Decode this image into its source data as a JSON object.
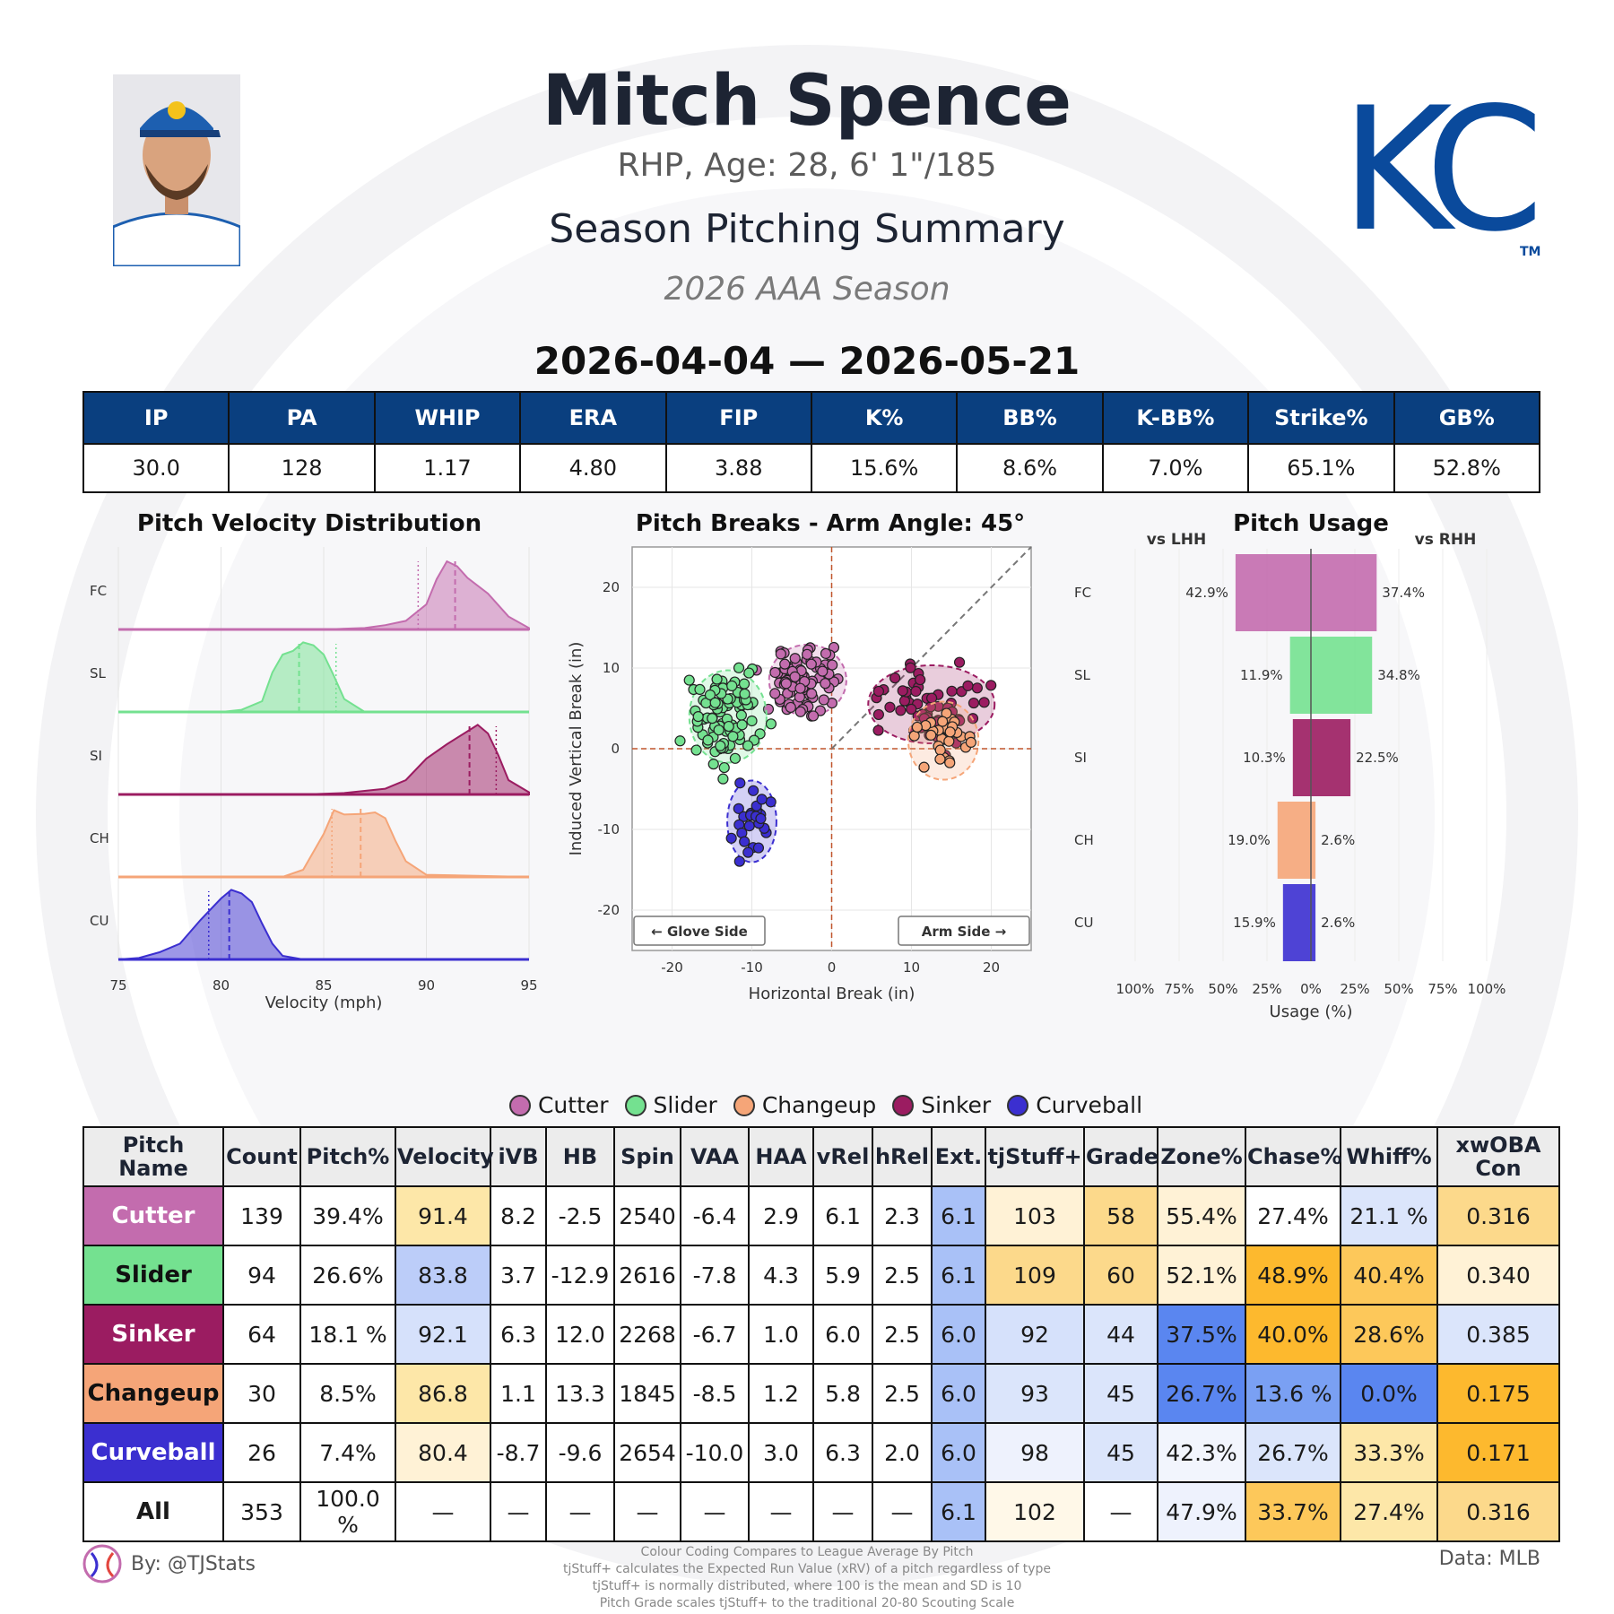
{
  "header": {
    "name": "Mitch Spence",
    "bio": "RHP, Age: 28, 6' 1\"/185",
    "summary_title": "Season Pitching Summary",
    "season": "2026 AAA Season",
    "date_range": "2026-04-04 — 2026-05-21",
    "logo_text": "KC",
    "logo_tm": "TM"
  },
  "colors": {
    "Cutter": "#c36cae",
    "Slider": "#74e190",
    "Sinker": "#9b1c61",
    "Changeup": "#f5a578",
    "Curveball": "#3b2fd0",
    "header_blue": "#0a3f7f"
  },
  "stats": {
    "headers": [
      "IP",
      "PA",
      "WHIP",
      "ERA",
      "FIP",
      "K%",
      "BB%",
      "K-BB%",
      "Strike%",
      "GB%"
    ],
    "values": [
      "30.0",
      "128",
      "1.17",
      "4.80",
      "3.88",
      "15.6%",
      "8.6%",
      "7.0%",
      "65.1%",
      "52.8%"
    ]
  },
  "chart_data": [
    {
      "type": "area",
      "title": "Pitch Velocity Distribution",
      "xlabel": "Velocity (mph)",
      "xlim": [
        75,
        95
      ],
      "xticks": [
        75,
        80,
        85,
        90,
        95
      ],
      "series": [
        {
          "name": "FC",
          "pitch": "Cutter",
          "x": [
            75,
            85,
            87,
            88,
            89,
            90,
            90.5,
            91,
            91.5,
            92,
            93,
            94,
            95
          ],
          "y": [
            0,
            0,
            0.02,
            0.06,
            0.12,
            0.35,
            0.7,
            0.95,
            0.88,
            0.72,
            0.5,
            0.18,
            0.02
          ],
          "mean": 91.4,
          "median": 89.6
        },
        {
          "name": "SL",
          "pitch": "Slider",
          "x": [
            75,
            80,
            81,
            82,
            82.5,
            83,
            83.5,
            84,
            84.5,
            85,
            85.5,
            86,
            87,
            95
          ],
          "y": [
            0,
            0,
            0.03,
            0.15,
            0.55,
            0.8,
            0.85,
            0.97,
            0.93,
            0.8,
            0.5,
            0.18,
            0,
            0
          ],
          "mean": 83.8,
          "median": 85.6
        },
        {
          "name": "SI",
          "pitch": "Sinker",
          "x": [
            75,
            84,
            86,
            88,
            89,
            90,
            91,
            92,
            92.5,
            93,
            93.5,
            94,
            95
          ],
          "y": [
            0,
            0,
            0.02,
            0.08,
            0.2,
            0.5,
            0.7,
            0.88,
            0.97,
            0.85,
            0.55,
            0.2,
            0.03
          ],
          "mean": 92.1,
          "median": 93.4
        },
        {
          "name": "CH",
          "pitch": "Changeup",
          "x": [
            75,
            83,
            84,
            85,
            85.5,
            86,
            87,
            87.5,
            88,
            88.5,
            89,
            90,
            95
          ],
          "y": [
            0,
            0,
            0.1,
            0.6,
            0.93,
            0.87,
            0.88,
            0.9,
            0.82,
            0.5,
            0.22,
            0.03,
            0
          ],
          "mean": 86.8,
          "median": 85.4
        },
        {
          "name": "CU",
          "pitch": "Curveball",
          "x": [
            75,
            76,
            77,
            78,
            79,
            80,
            80.5,
            81,
            81.5,
            82,
            82.5,
            83,
            84,
            95
          ],
          "y": [
            0,
            0.02,
            0.1,
            0.22,
            0.55,
            0.85,
            0.97,
            0.92,
            0.8,
            0.5,
            0.22,
            0.05,
            0,
            0
          ],
          "mean": 80.4,
          "median": 79.4
        }
      ]
    },
    {
      "type": "scatter",
      "title": "Pitch Breaks - Arm Angle: 45°",
      "xlabel": "Horizontal Break (in)",
      "ylabel": "Induced Vertical Break (in)",
      "xlim": [
        -25,
        25
      ],
      "ylim": [
        -25,
        25
      ],
      "xticks": [
        -20,
        -10,
        0,
        10,
        20
      ],
      "yticks": [
        -20,
        -10,
        0,
        10,
        20
      ],
      "annotations": [
        "← Glove Side",
        "Arm Side →"
      ],
      "series": [
        {
          "name": "Cutter",
          "center": [
            -3,
            8.5
          ],
          "spread": [
            2.2,
            2.0
          ],
          "n": 139
        },
        {
          "name": "Slider",
          "center": [
            -13,
            4
          ],
          "spread": [
            2.2,
            2.6
          ],
          "n": 94
        },
        {
          "name": "Sinker",
          "center": [
            12.5,
            5.5
          ],
          "spread": [
            3.6,
            2.2
          ],
          "n": 64
        },
        {
          "name": "Changeup",
          "center": [
            14,
            1
          ],
          "spread": [
            2.0,
            2.2
          ],
          "n": 30
        },
        {
          "name": "Curveball",
          "center": [
            -10,
            -9
          ],
          "spread": [
            1.4,
            2.3
          ],
          "n": 26
        }
      ]
    },
    {
      "type": "bar",
      "title": "Pitch Usage",
      "xlabel": "Usage (%)",
      "left_label": "vs LHH",
      "right_label": "vs RHH",
      "categories": [
        "FC",
        "SL",
        "SI",
        "CH",
        "CU"
      ],
      "xticks": [
        "100%",
        "75%",
        "50%",
        "25%",
        "0%",
        "25%",
        "50%",
        "75%",
        "100%"
      ],
      "series": [
        {
          "name": "vs LHH",
          "values": [
            42.9,
            11.9,
            10.3,
            19.0,
            15.9
          ],
          "labels": [
            "42.9%",
            "11.9%",
            "10.3%",
            "19.0%",
            "15.9%"
          ]
        },
        {
          "name": "vs RHH",
          "values": [
            37.4,
            34.8,
            22.5,
            2.6,
            2.6
          ],
          "labels": [
            "37.4%",
            "34.8%",
            "22.5%",
            "2.6%",
            "2.6%"
          ]
        }
      ]
    }
  ],
  "legend": [
    "Cutter",
    "Slider",
    "Changeup",
    "Sinker",
    "Curveball"
  ],
  "pitch_table": {
    "headers": [
      "Pitch Name",
      "Count",
      "Pitch%",
      "Velocity",
      "iVB",
      "HB",
      "Spin",
      "VAA",
      "HAA",
      "vRel",
      "hRel",
      "Ext.",
      "tjStuff+",
      "Grade",
      "Zone%",
      "Chase%",
      "Whiff%",
      "xwOBA Con"
    ],
    "rows": [
      {
        "name": "Cutter",
        "cells": [
          "139",
          "39.4%",
          "91.4",
          "8.2",
          "-2.5",
          "2540",
          "-6.4",
          "2.9",
          "6.1",
          "2.3",
          "6.1",
          "103",
          "58",
          "55.4%",
          "27.4%",
          "21.1 %",
          "0.316"
        ]
      },
      {
        "name": "Slider",
        "cells": [
          "94",
          "26.6%",
          "83.8",
          "3.7",
          "-12.9",
          "2616",
          "-7.8",
          "4.3",
          "5.9",
          "2.5",
          "6.1",
          "109",
          "60",
          "52.1%",
          "48.9%",
          "40.4%",
          "0.340"
        ]
      },
      {
        "name": "Sinker",
        "cells": [
          "64",
          "18.1 %",
          "92.1",
          "6.3",
          "12.0",
          "2268",
          "-6.7",
          "1.0",
          "6.0",
          "2.5",
          "6.0",
          "92",
          "44",
          "37.5%",
          "40.0%",
          "28.6%",
          "0.385"
        ]
      },
      {
        "name": "Changeup",
        "cells": [
          "30",
          "8.5%",
          "86.8",
          "1.1",
          "13.3",
          "1845",
          "-8.5",
          "1.2",
          "5.8",
          "2.5",
          "6.0",
          "93",
          "45",
          "26.7%",
          "13.6 %",
          "0.0%",
          "0.175"
        ]
      },
      {
        "name": "Curveball",
        "cells": [
          "26",
          "7.4%",
          "80.4",
          "-8.7",
          "-9.6",
          "2654",
          "-10.0",
          "3.0",
          "6.3",
          "2.0",
          "6.0",
          "98",
          "45",
          "42.3%",
          "26.7%",
          "33.3%",
          "0.171"
        ]
      },
      {
        "name": "All",
        "cells": [
          "353",
          "100.0 %",
          "—",
          "—",
          "—",
          "—",
          "—",
          "—",
          "—",
          "—",
          "6.1",
          "102",
          "—",
          "47.9%",
          "33.7%",
          "27.4%",
          "0.316"
        ]
      }
    ],
    "cell_colors": [
      [
        "#ffffff",
        "#ffffff",
        "#fde7a8",
        "#ffffff",
        "#ffffff",
        "#ffffff",
        "#ffffff",
        "#ffffff",
        "#ffffff",
        "#ffffff",
        "#a9c1f7",
        "#fff2d6",
        "#fcd98b",
        "#fff2d6",
        "#ffffff",
        "#dbe5fb",
        "#fcd98b"
      ],
      [
        "#ffffff",
        "#ffffff",
        "#bccdf9",
        "#ffffff",
        "#ffffff",
        "#ffffff",
        "#ffffff",
        "#ffffff",
        "#ffffff",
        "#ffffff",
        "#a9c1f7",
        "#fcd98b",
        "#fcd98b",
        "#fff2d6",
        "#fdb92e",
        "#fdc85a",
        "#fff2d6"
      ],
      [
        "#ffffff",
        "#ffffff",
        "#d6e1fb",
        "#ffffff",
        "#ffffff",
        "#ffffff",
        "#ffffff",
        "#ffffff",
        "#ffffff",
        "#ffffff",
        "#a9c1f7",
        "#d6e1fb",
        "#dbe5fb",
        "#5a86f0",
        "#fdb92e",
        "#fdc85a",
        "#dbe5fb"
      ],
      [
        "#ffffff",
        "#ffffff",
        "#fde7a8",
        "#ffffff",
        "#ffffff",
        "#ffffff",
        "#ffffff",
        "#ffffff",
        "#ffffff",
        "#ffffff",
        "#a9c1f7",
        "#dbe5fb",
        "#dbe5fb",
        "#5a86f0",
        "#7aa0f3",
        "#5a86f0",
        "#fdb92e"
      ],
      [
        "#ffffff",
        "#ffffff",
        "#fff2d6",
        "#ffffff",
        "#ffffff",
        "#ffffff",
        "#ffffff",
        "#ffffff",
        "#ffffff",
        "#ffffff",
        "#a9c1f7",
        "#eef2fd",
        "#dbe5fb",
        "#f2f5fd",
        "#dbe5fb",
        "#fde7a8",
        "#fdb92e"
      ],
      [
        "#ffffff",
        "#ffffff",
        "#ffffff",
        "#ffffff",
        "#ffffff",
        "#ffffff",
        "#ffffff",
        "#ffffff",
        "#ffffff",
        "#ffffff",
        "#a9c1f7",
        "#fff8e8",
        "#ffffff",
        "#eef2fd",
        "#fdc85a",
        "#fde7a8",
        "#fcd98b"
      ]
    ]
  },
  "footer": {
    "by": "By: @TJStats",
    "data_source": "Data: MLB",
    "notes": [
      "Colour Coding Compares to League Average By Pitch",
      "tjStuff+ calculates the Expected Run Value (xRV) of a pitch regardless of type",
      "tjStuff+ is normally distributed, where 100 is the mean and SD is 10",
      "Pitch Grade scales tjStuff+ to the traditional 20-80 Scouting Scale"
    ]
  }
}
